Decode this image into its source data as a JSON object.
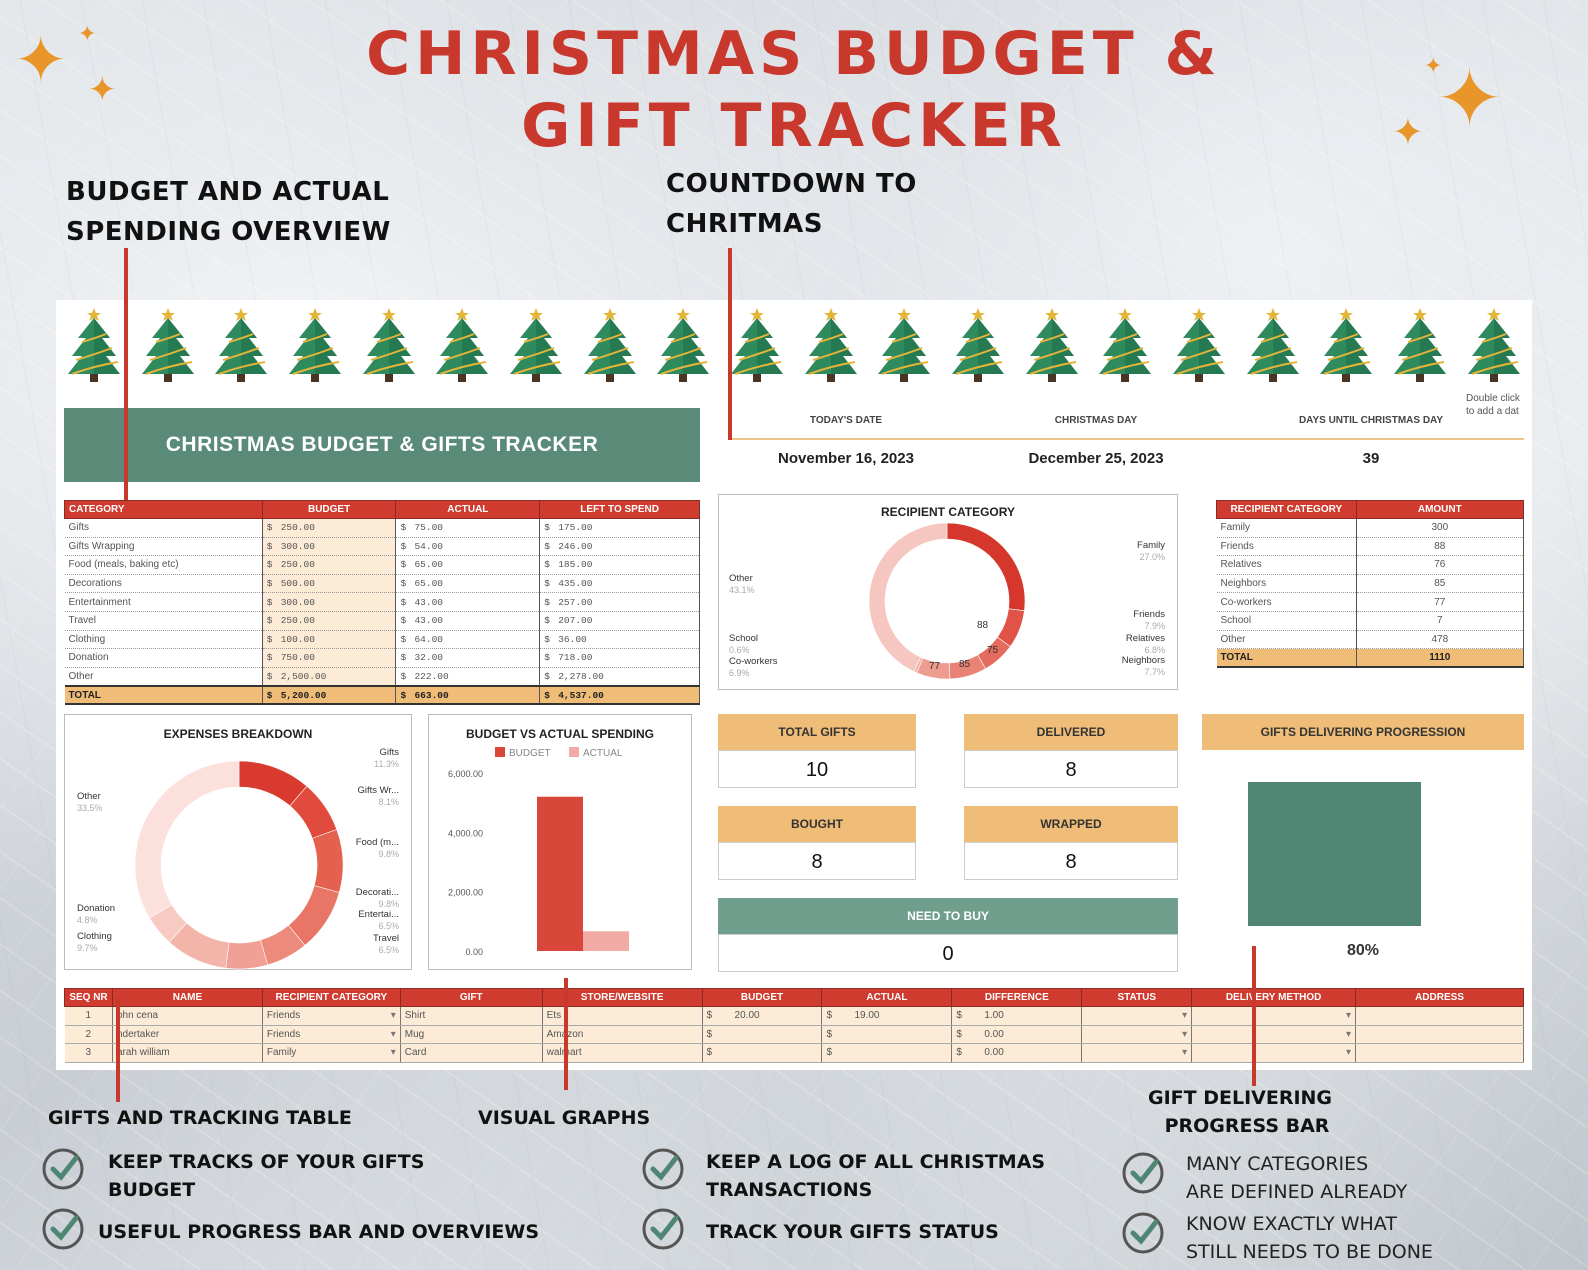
{
  "poster": {
    "title_line1": "CHRISTMAS BUDGET &",
    "title_line2": "GIFT TRACKER"
  },
  "callouts": {
    "budget_overview_line1": "BUDGET AND ACTUAL",
    "budget_overview_line2": "SPENDING OVERVIEW",
    "countdown_line1": "COUNTDOWN TO",
    "countdown_line2": "CHRITMAS",
    "gifts_table": "GIFTS AND TRACKING TABLE",
    "visual_graphs": "VISUAL GRAPHS",
    "progress_line1": "GIFT DELIVERING",
    "progress_line2": "PROGRESS BAR"
  },
  "features": {
    "f1_line1": "KEEP TRACKS OF YOUR GIFTS",
    "f1_line2": "BUDGET",
    "f2": "USEFUL PROGRESS BAR AND OVERVIEWS",
    "f3_line1": "KEEP A LOG OF ALL CHRISTMAS",
    "f3_line2": "TRANSACTIONS",
    "f4": "TRACK YOUR GIFTS STATUS",
    "f5_line1": "MANY CATEGORIES",
    "f5_line2": "ARE DEFINED ALREADY",
    "f6_line1": "KNOW EXACTLY WHAT",
    "f6_line2": "STILL NEEDS TO BE DONE"
  },
  "sheet": {
    "banner": "CHRISTMAS BUDGET & GIFTS TRACKER",
    "double_click_line1": "Double click",
    "double_click_line2": "to add a dat",
    "countdown": {
      "today_label": "TODAY'S DATE",
      "today_value": "November 16, 2023",
      "christmas_label": "CHRISTMAS DAY",
      "christmas_value": "December 25, 2023",
      "days_label": "DAYS UNTIL CHRISTMAS DAY",
      "days_value": "39"
    },
    "budget_table": {
      "headers": [
        "CATEGORY",
        "BUDGET",
        "ACTUAL",
        "LEFT TO SPEND"
      ],
      "currency": "$",
      "rows": [
        [
          "Gifts",
          "250.00",
          "75.00",
          "175.00"
        ],
        [
          "Gifts Wrapping",
          "300.00",
          "54.00",
          "246.00"
        ],
        [
          "Food (meals, baking etc)",
          "250.00",
          "65.00",
          "185.00"
        ],
        [
          "Decorations",
          "500.00",
          "65.00",
          "435.00"
        ],
        [
          "Entertainment",
          "300.00",
          "43.00",
          "257.00"
        ],
        [
          "Travel",
          "250.00",
          "43.00",
          "207.00"
        ],
        [
          "Clothing",
          "100.00",
          "64.00",
          "36.00"
        ],
        [
          "Donation",
          "750.00",
          "32.00",
          "718.00"
        ],
        [
          "Other",
          "2,500.00",
          "222.00",
          "2,278.00"
        ]
      ],
      "total": [
        "TOTAL",
        "5,200.00",
        "663.00",
        "4,537.00"
      ]
    },
    "recipient_chart": {
      "title": "RECIPIENT CATEGORY",
      "labels": {
        "family": "Family",
        "family_pct": "27.0%",
        "friends": "Friends",
        "friends_pct": "7.9%",
        "relatives": "Relatives",
        "relatives_pct": "6.8%",
        "neighbors": "Neighbors",
        "neighbors_pct": "7.7%",
        "other": "Other",
        "other_pct": "43.1%",
        "school": "School",
        "school_pct": "0.6%",
        "coworkers": "Co-workers",
        "coworkers_pct": "6.9%"
      },
      "slice_labels": [
        "88",
        "75",
        "85",
        "77"
      ]
    },
    "recipient_table": {
      "headers": [
        "RECIPIENT CATEGORY",
        "AMOUNT"
      ],
      "rows": [
        [
          "Family",
          "300"
        ],
        [
          "Friends",
          "88"
        ],
        [
          "Relatives",
          "76"
        ],
        [
          "Neighbors",
          "85"
        ],
        [
          "Co-workers",
          "77"
        ],
        [
          "School",
          "7"
        ],
        [
          "Other",
          "478"
        ]
      ],
      "total": [
        "TOTAL",
        "1110"
      ]
    },
    "expenses_chart": {
      "title": "EXPENSES BREAKDOWN",
      "labels": {
        "gifts": "Gifts",
        "gifts_pct": "11.3%",
        "wrapping": "Gifts Wr...",
        "wrapping_pct": "8.1%",
        "food": "Food (m...",
        "food_pct": "9.8%",
        "decor": "Decorati...",
        "decor_pct": "9.8%",
        "entert": "Entertai...",
        "entert_pct": "6.5%",
        "travel": "Travel",
        "travel_pct": "6.5%",
        "clothing": "Clothing",
        "clothing_pct": "9.7%",
        "donation": "Donation",
        "donation_pct": "4.8%",
        "other": "Other",
        "other_pct": "33.5%"
      }
    },
    "stats": {
      "total_gifts_label": "TOTAL GIFTS",
      "total_gifts": "10",
      "delivered_label": "DELIVERED",
      "delivered": "8",
      "bought_label": "BOUGHT",
      "bought": "8",
      "wrapped_label": "WRAPPED",
      "wrapped": "8",
      "need_label": "NEED TO BUY",
      "need": "0"
    },
    "progress": {
      "title": "GIFTS  DELIVERING PROGRESSION",
      "value_label": "80%",
      "fraction": 0.8
    },
    "gifts_table": {
      "headers": [
        "SEQ NR",
        "NAME",
        "RECIPIENT CATEGORY",
        "GIFT",
        "STORE/WEBSITE",
        "BUDGET",
        "ACTUAL",
        "DIFFERENCE",
        "STATUS",
        "DELIVERY METHOD",
        "ADDRESS"
      ],
      "rows": [
        [
          "1",
          "ohn cena",
          "Friends",
          "Shirt",
          "Ets",
          "$",
          "20.00",
          "$",
          "19.00",
          "$",
          "1.00"
        ],
        [
          "2",
          "ndertaker",
          "Friends",
          "Mug",
          "Amazon",
          "$",
          "",
          "$",
          "",
          "$",
          "0.00"
        ],
        [
          "3",
          "arah william",
          "Family",
          "Card",
          "walmart",
          "$",
          "",
          "$",
          "",
          "$",
          "0.00"
        ]
      ]
    }
  },
  "chart_data": [
    {
      "type": "pie",
      "title": "EXPENSES BREAKDOWN",
      "categories": [
        "Gifts",
        "Gifts Wrapping",
        "Food (meals, baking etc)",
        "Decorations",
        "Entertainment",
        "Travel",
        "Clothing",
        "Donation",
        "Other"
      ],
      "values": [
        75,
        54,
        65,
        65,
        43,
        43,
        64,
        32,
        222
      ],
      "colors": [
        "#d93a2f",
        "#e04b3e",
        "#e4604f",
        "#e87565",
        "#ec8b7c",
        "#f0a094",
        "#f3b5aa",
        "#f7cac2",
        "#fbe0db"
      ]
    },
    {
      "type": "bar",
      "title": "BUDGET VS ACTUAL SPENDING",
      "categories": [
        ""
      ],
      "series": [
        {
          "name": "BUDGET",
          "values": [
            5200
          ],
          "color": "#d9463a"
        },
        {
          "name": "ACTUAL",
          "values": [
            663
          ],
          "color": "#f2aaa4"
        }
      ],
      "yticks": [
        "6,000.00",
        "4,000.00",
        "2,000.00",
        "0.00"
      ],
      "ylim": [
        0,
        6000
      ]
    },
    {
      "type": "pie",
      "title": "RECIPIENT CATEGORY",
      "categories": [
        "Family",
        "Friends",
        "Relatives",
        "Neighbors",
        "Co-workers",
        "School",
        "Other"
      ],
      "values": [
        300,
        88,
        76,
        85,
        77,
        7,
        478
      ],
      "colors": [
        "#d6372c",
        "#df5446",
        "#e46b5e",
        "#e98376",
        "#ee9b90",
        "#f2b1a8",
        "#f6c6c0"
      ]
    }
  ]
}
